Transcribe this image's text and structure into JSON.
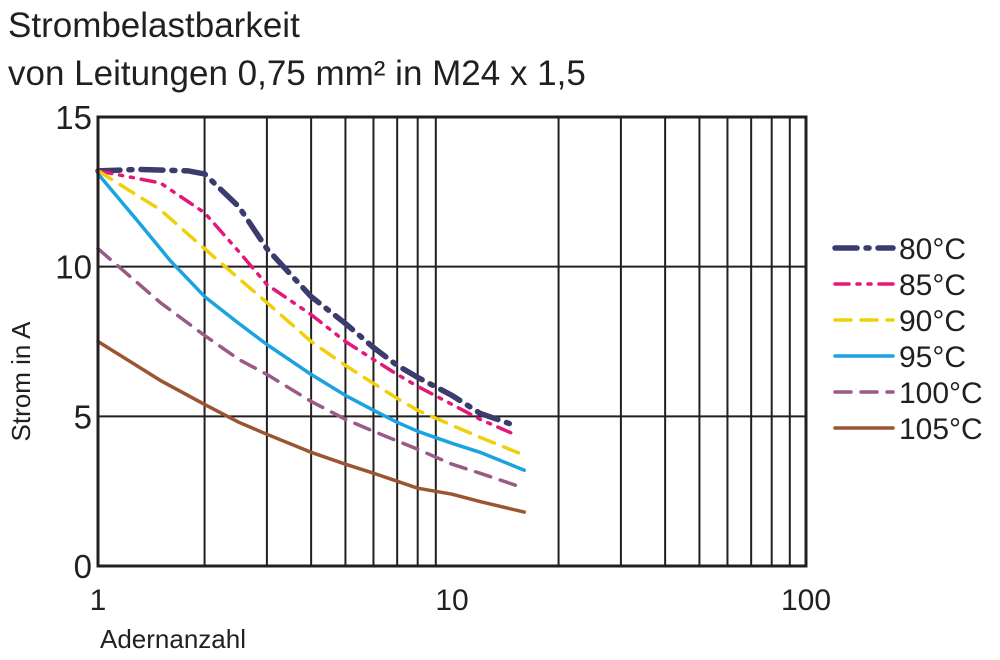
{
  "title_line1": "Strombelastbarkeit",
  "title_line2": "von Leitungen 0,75 mm² in M24 x 1,5",
  "chart_data": {
    "type": "line",
    "xscale": "log",
    "xlim": [
      1,
      100
    ],
    "ylim": [
      0,
      15
    ],
    "xlabel": "Adernanzahl",
    "ylabel": "Strom in A",
    "xticks": [
      1,
      10,
      100
    ],
    "xtick_labels": [
      "1",
      "10",
      "100"
    ],
    "yticks": [
      0,
      5,
      10,
      15
    ],
    "ytick_labels": [
      "0",
      "5",
      "10",
      "15"
    ],
    "grid": true,
    "legend_position": "right",
    "series": [
      {
        "name": "80°C",
        "color": "#3b3b6e",
        "dash": "dash-dot",
        "x": [
          1,
          1.3,
          1.8,
          2,
          2.5,
          3,
          4,
          5,
          6,
          7,
          8,
          10,
          12,
          15
        ],
        "y": [
          13.2,
          13.25,
          13.2,
          13.1,
          12.0,
          10.6,
          9.0,
          8.1,
          7.3,
          6.7,
          6.3,
          5.7,
          5.1,
          4.7
        ]
      },
      {
        "name": "85°C",
        "color": "#e3197a",
        "dash": "dash-dot-dot",
        "x": [
          1,
          1.5,
          2,
          2.5,
          3,
          4,
          5,
          6,
          7,
          8,
          10,
          12,
          15
        ],
        "y": [
          13.2,
          12.8,
          11.8,
          10.5,
          9.4,
          8.4,
          7.5,
          6.9,
          6.4,
          6.0,
          5.4,
          4.9,
          4.4
        ]
      },
      {
        "name": "90°C",
        "color": "#f0d00a",
        "dash": "dash",
        "x": [
          1,
          1.5,
          2,
          2.5,
          3,
          4,
          5,
          6,
          7,
          8,
          10,
          12,
          16
        ],
        "y": [
          13.2,
          11.9,
          10.6,
          9.6,
          8.8,
          7.5,
          6.7,
          6.1,
          5.6,
          5.2,
          4.7,
          4.3,
          3.7
        ]
      },
      {
        "name": "95°C",
        "color": "#1ba3e0",
        "dash": "solid",
        "x": [
          1,
          1.3,
          1.6,
          2,
          2.5,
          3,
          4,
          5,
          6,
          7,
          8,
          10,
          12,
          16
        ],
        "y": [
          13.1,
          11.5,
          10.2,
          9.0,
          8.1,
          7.4,
          6.4,
          5.7,
          5.2,
          4.8,
          4.5,
          4.1,
          3.8,
          3.2
        ]
      },
      {
        "name": "100°C",
        "color": "#9a5a86",
        "dash": "dash",
        "x": [
          1,
          1.5,
          2,
          2.5,
          3,
          4,
          5,
          6,
          8,
          10,
          12,
          16
        ],
        "y": [
          10.6,
          8.8,
          7.7,
          6.9,
          6.4,
          5.5,
          4.9,
          4.5,
          3.9,
          3.4,
          3.1,
          2.6
        ]
      },
      {
        "name": "105°C",
        "color": "#9a5533",
        "dash": "solid",
        "x": [
          1,
          1.5,
          2,
          2.5,
          3,
          4,
          5,
          6,
          8,
          10,
          12,
          16
        ],
        "y": [
          7.5,
          6.2,
          5.4,
          4.8,
          4.4,
          3.8,
          3.4,
          3.1,
          2.6,
          2.4,
          2.15,
          1.8
        ]
      }
    ]
  }
}
